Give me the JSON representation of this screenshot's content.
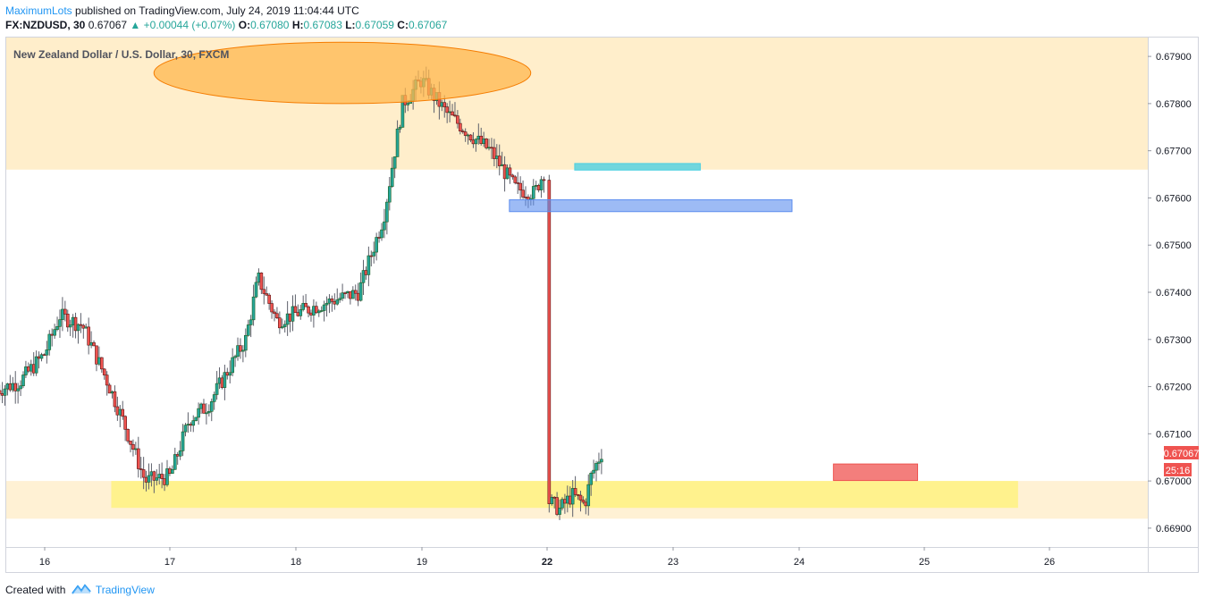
{
  "header": {
    "publisher": "MaximumLots",
    "published_text": "published on TradingView.com, July 24, 2019 11:04:44 UTC",
    "symbol": "FX:NZDUSD, 30",
    "last": "0.67067",
    "change": "▲ +0.00044 (+0.07%)",
    "open_label": "O:",
    "open": "0.67080",
    "high_label": "H:",
    "high": "0.67083",
    "low_label": "L:",
    "low": "0.67059",
    "close_label": "C:",
    "close": "0.67067"
  },
  "chart_title": "New Zealand Dollar / U.S. Dollar, 30, FXCM",
  "price_tag": "0.67067",
  "countdown_tag": "25:16",
  "footer": {
    "created_with": "Created with",
    "brand": "TradingView"
  },
  "colors": {
    "up_candle": "#26a69a",
    "up_candle_dark": "#1b5e20",
    "down_candle": "#ef5350",
    "down_candle_dark": "#5d1010",
    "supply_zone": "#ffe0a0",
    "demand_zone": "#fff176",
    "ellipse": "#ffb74d",
    "cyan_box": "#4dd0e1",
    "blue_box": "#5b8def",
    "red_box": "#ef5350"
  },
  "chart_data": {
    "type": "candlestick",
    "title": "New Zealand Dollar / U.S. Dollar, 30, FXCM",
    "ylim": [
      0.6686,
      0.6794
    ],
    "y_ticks": [
      "0.66900",
      "0.67000",
      "0.67100",
      "0.67200",
      "0.67300",
      "0.67400",
      "0.67500",
      "0.67600",
      "0.67700",
      "0.67800",
      "0.67900"
    ],
    "x_ticks": [
      "16",
      "17",
      "18",
      "19",
      "22",
      "23",
      "24",
      "25",
      "26"
    ],
    "last_price": 0.67067,
    "path": [
      [
        15.6,
        0.6719
      ],
      [
        15.8,
        0.6721
      ],
      [
        16.0,
        0.6727
      ],
      [
        16.12,
        0.6735
      ],
      [
        16.3,
        0.6733
      ],
      [
        16.5,
        0.6721
      ],
      [
        16.62,
        0.6713
      ],
      [
        16.8,
        0.67
      ],
      [
        17.0,
        0.6701
      ],
      [
        17.15,
        0.6713
      ],
      [
        17.3,
        0.6716
      ],
      [
        17.6,
        0.673
      ],
      [
        17.7,
        0.6743
      ],
      [
        17.85,
        0.6734
      ],
      [
        18.15,
        0.6737
      ],
      [
        18.5,
        0.674
      ],
      [
        18.7,
        0.6756
      ],
      [
        18.85,
        0.678
      ],
      [
        19.0,
        0.6785
      ],
      [
        19.2,
        0.6778
      ],
      [
        19.45,
        0.6772
      ],
      [
        19.55,
        0.677
      ],
      [
        19.75,
        0.6762
      ],
      [
        19.9,
        0.6761
      ],
      [
        20.05,
        0.677
      ],
      [
        20.2,
        0.6778
      ],
      [
        20.35,
        0.6775
      ],
      [
        20.45,
        0.677
      ],
      [
        20.55,
        0.6782
      ],
      [
        20.7,
        0.6785
      ],
      [
        20.85,
        0.6772
      ],
      [
        20.95,
        0.6763
      ],
      [
        21.0,
        0.6757
      ],
      [
        21.08,
        0.6742
      ],
      [
        21.3,
        0.6735
      ],
      [
        21.45,
        0.6733
      ],
      [
        21.55,
        0.672
      ],
      [
        21.65,
        0.6712
      ],
      [
        21.75,
        0.6708
      ],
      [
        21.88,
        0.6702
      ],
      [
        21.95,
        0.6697
      ],
      [
        22.1,
        0.6694
      ],
      [
        22.2,
        0.6697
      ],
      [
        22.3,
        0.6695
      ],
      [
        22.35,
        0.6701
      ],
      [
        22.45,
        0.6707
      ]
    ],
    "annotations": [
      {
        "type": "zone",
        "name": "supply",
        "y": [
          0.6766,
          0.6794
        ]
      },
      {
        "type": "zone",
        "name": "demand",
        "y": [
          0.6692,
          0.67
        ]
      },
      {
        "type": "box",
        "name": "demand-inner",
        "x": [
          16.53,
          25.75
        ],
        "y": [
          0.66943,
          0.67
        ]
      },
      {
        "type": "ellipse",
        "name": "top-ellipse",
        "x": [
          16.87,
          21.87
        ],
        "y": [
          0.678,
          0.6793
        ]
      },
      {
        "type": "box",
        "name": "cyan-box",
        "x": [
          22.22,
          23.22
        ],
        "y": [
          0.67659,
          0.67673
        ]
      },
      {
        "type": "box",
        "name": "blue-box",
        "x": [
          21.7,
          23.95
        ],
        "y": [
          0.67571,
          0.67596
        ]
      },
      {
        "type": "box",
        "name": "red-box",
        "x": [
          24.28,
          24.95
        ],
        "y": [
          0.67001,
          0.67036
        ]
      }
    ]
  }
}
